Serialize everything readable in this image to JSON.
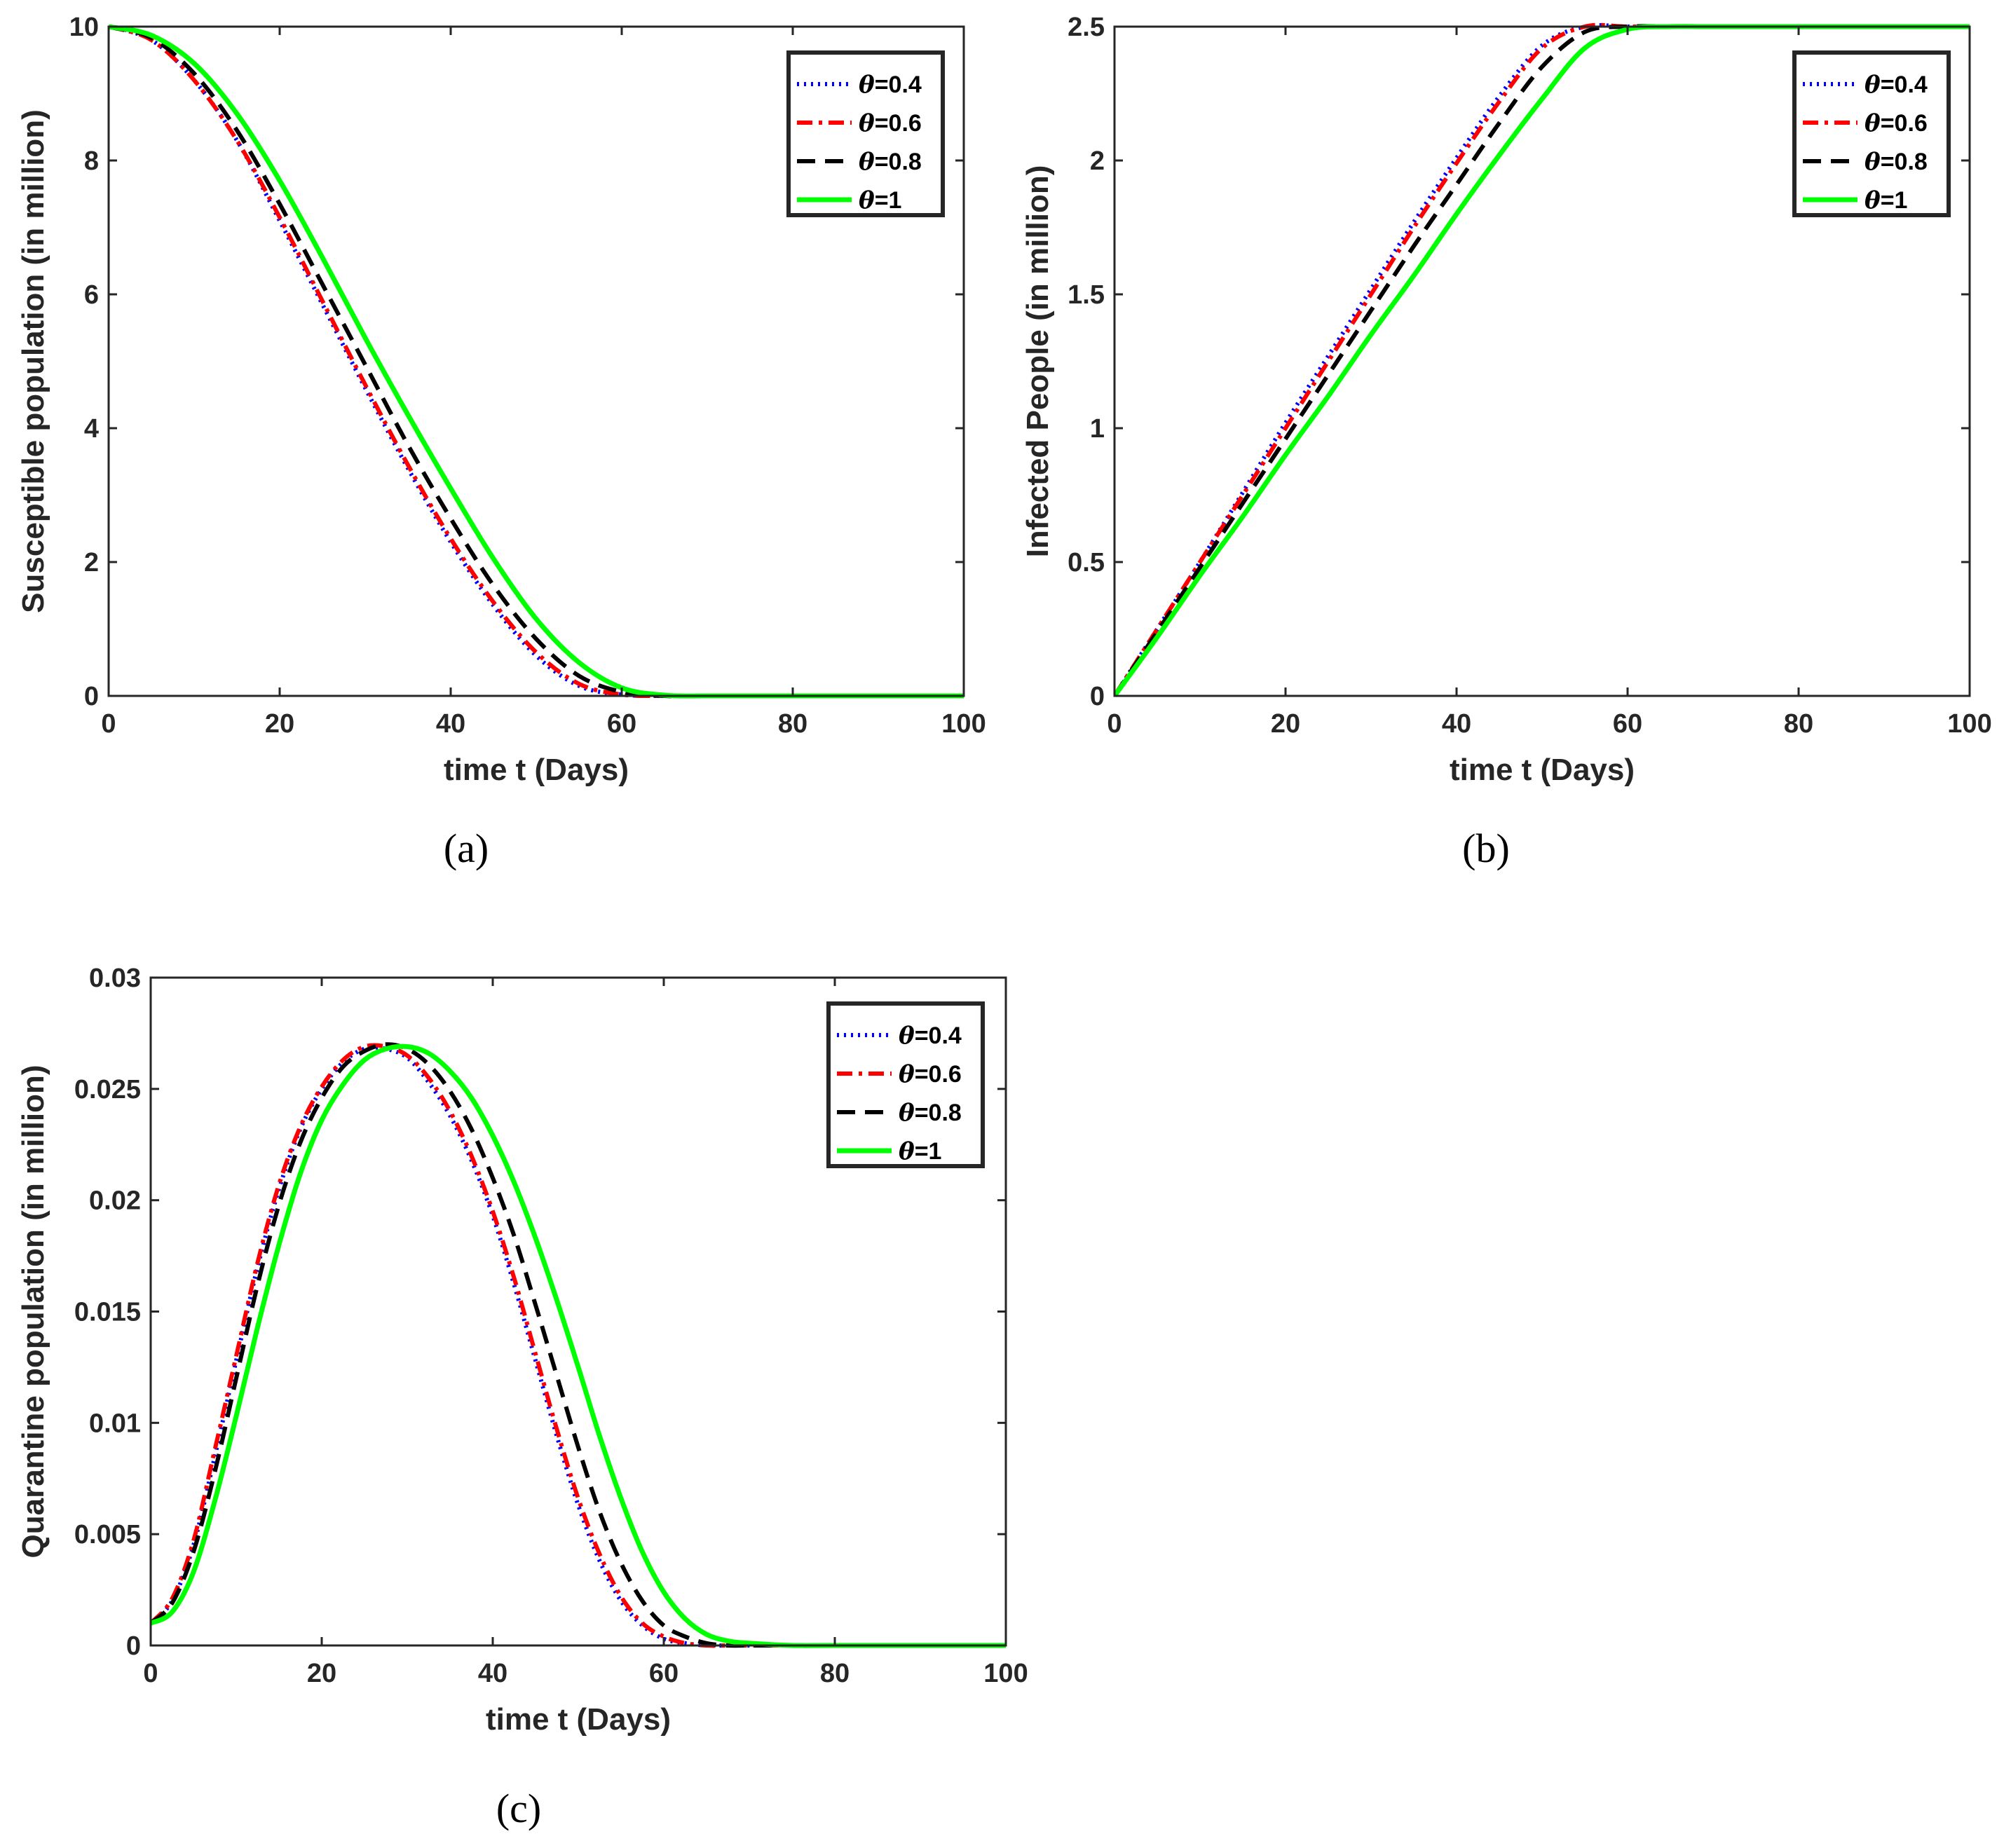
{
  "chart_data": [
    {
      "id": "a",
      "type": "line",
      "caption": "(a)",
      "title": "",
      "xlabel": "time t (Days)",
      "ylabel": "Susceptible population (in million)",
      "xlim": [
        0,
        100
      ],
      "ylim": [
        0,
        10
      ],
      "xticks": [
        0,
        20,
        40,
        60,
        80,
        100
      ],
      "yticks": [
        0,
        2,
        4,
        6,
        8,
        10
      ],
      "xtick_labels": [
        "0",
        "20",
        "40",
        "60",
        "80",
        "100"
      ],
      "ytick_labels": [
        "0",
        "2",
        "4",
        "6",
        "8",
        "10"
      ],
      "grid": false,
      "legend_position": "top-right",
      "x": [
        0,
        5,
        10,
        15,
        20,
        25,
        30,
        35,
        40,
        45,
        50,
        55,
        60,
        65,
        70,
        80,
        90,
        100
      ],
      "series": [
        {
          "name": "θ=0.4",
          "legend_label": "=0.4",
          "color": "#0000ff",
          "style": "dotted",
          "values": [
            10,
            9.8,
            9.2,
            8.3,
            7.1,
            5.85,
            4.6,
            3.4,
            2.3,
            1.35,
            0.6,
            0.15,
            0.02,
            0,
            0,
            0,
            0,
            0
          ]
        },
        {
          "name": "θ=0.6",
          "legend_label": "=0.6",
          "color": "#ff0000",
          "style": "dashdot",
          "values": [
            10,
            9.8,
            9.2,
            8.3,
            7.15,
            5.9,
            4.65,
            3.45,
            2.35,
            1.4,
            0.65,
            0.18,
            0.02,
            0,
            0,
            0,
            0,
            0
          ]
        },
        {
          "name": "θ=0.8",
          "legend_label": "=0.8",
          "color": "#000000",
          "style": "dashed",
          "values": [
            10,
            9.83,
            9.3,
            8.45,
            7.35,
            6.15,
            4.95,
            3.75,
            2.65,
            1.65,
            0.85,
            0.3,
            0.06,
            0,
            0,
            0,
            0,
            0
          ]
        },
        {
          "name": "θ=1",
          "legend_label": "=1",
          "color": "#00ff00",
          "style": "solid",
          "values": [
            10,
            9.87,
            9.45,
            8.7,
            7.7,
            6.55,
            5.35,
            4.2,
            3.1,
            2.05,
            1.15,
            0.5,
            0.12,
            0.01,
            0,
            0,
            0,
            0
          ]
        }
      ]
    },
    {
      "id": "b",
      "type": "line",
      "caption": "(b)",
      "title": "",
      "xlabel": "time t (Days)",
      "ylabel": "Infected People (in million)",
      "xlim": [
        0,
        100
      ],
      "ylim": [
        0,
        2.5
      ],
      "xticks": [
        0,
        20,
        40,
        60,
        80,
        100
      ],
      "yticks": [
        0,
        0.5,
        1,
        1.5,
        2,
        2.5
      ],
      "xtick_labels": [
        "0",
        "20",
        "40",
        "60",
        "80",
        "100"
      ],
      "ytick_labels": [
        "0",
        "0.5",
        "1",
        "1.5",
        "2",
        "2.5"
      ],
      "grid": false,
      "legend_position": "top-right",
      "x": [
        0,
        5,
        10,
        15,
        20,
        25,
        30,
        35,
        40,
        45,
        50,
        55,
        60,
        65,
        70,
        80,
        90,
        100
      ],
      "series": [
        {
          "name": "θ=0.4",
          "legend_label": "=0.4",
          "color": "#0000ff",
          "style": "dotted",
          "values": [
            0,
            0.25,
            0.5,
            0.76,
            1.02,
            1.27,
            1.52,
            1.77,
            2.01,
            2.24,
            2.43,
            2.5,
            2.5,
            2.5,
            2.5,
            2.5,
            2.5,
            2.5
          ]
        },
        {
          "name": "θ=0.6",
          "legend_label": "=0.6",
          "color": "#ff0000",
          "style": "dashdot",
          "values": [
            0,
            0.25,
            0.5,
            0.75,
            1.0,
            1.25,
            1.5,
            1.75,
            1.99,
            2.22,
            2.42,
            2.5,
            2.5,
            2.5,
            2.5,
            2.5,
            2.5,
            2.5
          ]
        },
        {
          "name": "θ=0.8",
          "legend_label": "=0.8",
          "color": "#000000",
          "style": "dashed",
          "values": [
            0,
            0.24,
            0.48,
            0.72,
            0.96,
            1.2,
            1.44,
            1.68,
            1.91,
            2.14,
            2.35,
            2.48,
            2.5,
            2.5,
            2.5,
            2.5,
            2.5,
            2.5
          ]
        },
        {
          "name": "θ=1",
          "legend_label": "=1",
          "color": "#00ff00",
          "style": "solid",
          "values": [
            0,
            0.22,
            0.45,
            0.67,
            0.9,
            1.12,
            1.35,
            1.57,
            1.8,
            2.02,
            2.23,
            2.42,
            2.49,
            2.5,
            2.5,
            2.5,
            2.5,
            2.5
          ]
        }
      ]
    },
    {
      "id": "c",
      "type": "line",
      "caption": "(c)",
      "title": "",
      "xlabel": "time t (Days)",
      "ylabel": "Quarantine population (in million)",
      "xlim": [
        0,
        100
      ],
      "ylim": [
        0,
        0.03
      ],
      "xticks": [
        0,
        20,
        40,
        60,
        80,
        100
      ],
      "yticks": [
        0,
        0.005,
        0.01,
        0.015,
        0.02,
        0.025,
        0.03
      ],
      "xtick_labels": [
        "0",
        "20",
        "40",
        "60",
        "80",
        "100"
      ],
      "ytick_labels": [
        "0",
        "0.005",
        "0.01",
        "0.015",
        "0.02",
        "0.025",
        "0.03"
      ],
      "grid": false,
      "legend_position": "top-right",
      "x": [
        0,
        2.5,
        5,
        7.5,
        10,
        12.5,
        15,
        17.5,
        20,
        22.5,
        25,
        27.5,
        30,
        32.5,
        35,
        37.5,
        40,
        42.5,
        45,
        47.5,
        50,
        52.5,
        55,
        57.5,
        60,
        62.5,
        65,
        67.5,
        70,
        75,
        80,
        90,
        100
      ],
      "series": [
        {
          "name": "θ=0.4",
          "legend_label": "=0.4",
          "color": "#0000ff",
          "style": "dotted",
          "values": [
            0.001,
            0.002,
            0.0045,
            0.0085,
            0.0128,
            0.017,
            0.0205,
            0.0232,
            0.025,
            0.0262,
            0.0268,
            0.0268,
            0.0264,
            0.0253,
            0.0238,
            0.0218,
            0.0193,
            0.0162,
            0.0128,
            0.0094,
            0.0063,
            0.0038,
            0.002,
            0.0009,
            0.0003,
            0.0001,
            0,
            0,
            0,
            0,
            0,
            0,
            0
          ]
        },
        {
          "name": "θ=0.6",
          "legend_label": "=0.6",
          "color": "#ff0000",
          "style": "dashdot",
          "values": [
            0.001,
            0.0021,
            0.0047,
            0.0088,
            0.013,
            0.0172,
            0.0207,
            0.0233,
            0.0251,
            0.0263,
            0.0269,
            0.0269,
            0.0265,
            0.0255,
            0.024,
            0.022,
            0.0195,
            0.0165,
            0.0131,
            0.0097,
            0.0066,
            0.0041,
            0.0022,
            0.001,
            0.0004,
            0.0001,
            0,
            0,
            0,
            0,
            0,
            0,
            0
          ]
        },
        {
          "name": "θ=0.8",
          "legend_label": "=0.8",
          "color": "#000000",
          "style": "dashed",
          "values": [
            0.001,
            0.0019,
            0.0042,
            0.0078,
            0.012,
            0.0162,
            0.0198,
            0.0226,
            0.0246,
            0.026,
            0.0267,
            0.027,
            0.0268,
            0.0261,
            0.0249,
            0.0232,
            0.021,
            0.0184,
            0.0153,
            0.0121,
            0.0089,
            0.006,
            0.0037,
            0.002,
            0.0009,
            0.0004,
            0.0001,
            0,
            0,
            0,
            0,
            0,
            0
          ]
        },
        {
          "name": "θ=1",
          "legend_label": "=1",
          "color": "#00ff00",
          "style": "solid",
          "values": [
            0.001,
            0.0015,
            0.0033,
            0.0065,
            0.0103,
            0.0143,
            0.018,
            0.0212,
            0.0236,
            0.0252,
            0.0263,
            0.0268,
            0.0269,
            0.0266,
            0.0258,
            0.0246,
            0.0229,
            0.0208,
            0.0183,
            0.0155,
            0.0125,
            0.0094,
            0.0066,
            0.0042,
            0.0024,
            0.0012,
            0.0005,
            0.0002,
            0.0001,
            0,
            0,
            0,
            0
          ]
        }
      ]
    }
  ]
}
